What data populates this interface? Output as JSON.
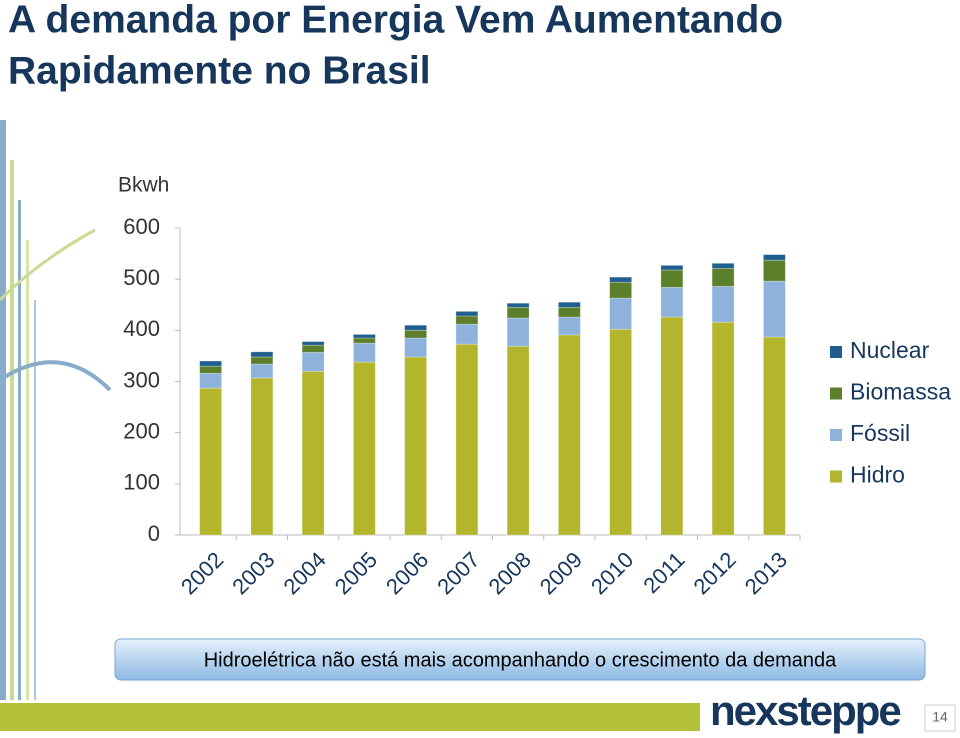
{
  "slide": {
    "title_lines": [
      "A demanda por Energia Vem Aumentando",
      "Rapidamente no Brasil"
    ],
    "caption": "Hidroelétrica não está mais acompanhando o crescimento da demanda",
    "logo": "nexsteppe",
    "page_number": "14"
  },
  "chart_data": {
    "type": "stacked_bar",
    "y_label": "Bkwh",
    "categories": [
      "2002",
      "2003",
      "2004",
      "2005",
      "2006",
      "2007",
      "2008",
      "2009",
      "2010",
      "2011",
      "2012",
      "2013"
    ],
    "series": [
      {
        "name": "Hidro",
        "color": "#b3b62c",
        "values": [
          287,
          307,
          320,
          338,
          348,
          373,
          369,
          391,
          402,
          426,
          416,
          387
        ]
      },
      {
        "name": "Fóssil",
        "color": "#8db3dd",
        "values": [
          29,
          27,
          37,
          37,
          37,
          39,
          55,
          35,
          61,
          58,
          70,
          109
        ]
      },
      {
        "name": "Biomassa",
        "color": "#5c7f2c",
        "values": [
          14,
          14,
          14,
          10,
          15,
          16,
          21,
          19,
          31,
          34,
          35,
          41
        ]
      },
      {
        "name": "Nuclear",
        "color": "#1f5e8e",
        "values": [
          10,
          10,
          7,
          7,
          10,
          9,
          8,
          10,
          10,
          9,
          10,
          11
        ]
      }
    ],
    "ylim": [
      0,
      600
    ],
    "yticks": [
      0,
      100,
      200,
      300,
      400,
      500,
      600
    ],
    "legend": "right"
  }
}
